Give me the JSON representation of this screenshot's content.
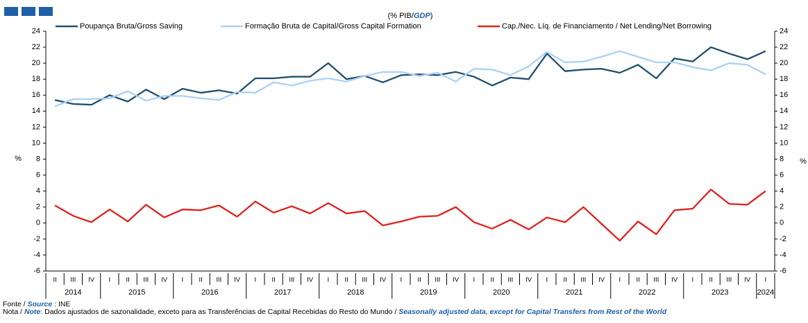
{
  "chart_data": {
    "type": "line",
    "title_parts": [
      "(% PIB/",
      "GDP",
      ")"
    ],
    "y_label": "%",
    "y2_label": "%",
    "categories": [
      "II",
      "III",
      "IV",
      "I",
      "II",
      "III",
      "IV",
      "I",
      "II",
      "III",
      "IV",
      "I",
      "II",
      "III",
      "IV",
      "I",
      "II",
      "III",
      "IV",
      "I",
      "II",
      "III",
      "IV",
      "I",
      "II",
      "III",
      "IV",
      "I",
      "II",
      "III",
      "IV",
      "I",
      "II",
      "III",
      "IV",
      "I",
      "II",
      "III",
      "IV",
      "I"
    ],
    "years": [
      "2014",
      "2015",
      "2016",
      "2017",
      "2018",
      "2019",
      "2020",
      "2021",
      "2022",
      "2023",
      "2024"
    ],
    "series": [
      {
        "name": "Poupança Bruta/Gross Saving",
        "color": "#1f4e6e",
        "values": [
          15.4,
          14.9,
          14.8,
          16.0,
          15.2,
          16.7,
          15.5,
          16.8,
          16.3,
          16.6,
          16.2,
          18.1,
          18.1,
          18.3,
          18.3,
          20.0,
          18.0,
          18.4,
          17.6,
          18.5,
          18.6,
          18.5,
          18.9,
          18.3,
          17.2,
          18.2,
          18.0,
          21.2,
          19.0,
          19.2,
          19.3,
          18.8,
          19.8,
          18.1,
          20.6,
          20.2,
          22.0,
          21.2,
          20.5,
          21.5
        ]
      },
      {
        "name": "Formação Bruta de Capital/Gross Capital Formation",
        "color": "#a9d1f5",
        "values": [
          14.6,
          15.5,
          15.5,
          15.6,
          16.5,
          15.3,
          15.9,
          15.9,
          15.6,
          15.4,
          16.4,
          16.3,
          17.6,
          17.2,
          17.8,
          18.1,
          17.7,
          18.4,
          18.9,
          18.9,
          18.4,
          18.8,
          17.7,
          19.3,
          19.2,
          18.5,
          19.6,
          21.4,
          20.1,
          20.2,
          20.8,
          21.5,
          20.8,
          20.1,
          20.1,
          19.5,
          19.1,
          20.0,
          19.8,
          18.6
        ]
      },
      {
        "name": "Cap./Nec. Líq. de Financiamento / Net Lending/Net Borrowing",
        "color": "#e0201b",
        "values": [
          2.2,
          0.9,
          0.1,
          1.7,
          0.2,
          2.3,
          0.7,
          1.7,
          1.6,
          2.2,
          0.8,
          2.7,
          1.3,
          2.1,
          1.2,
          2.5,
          1.2,
          1.5,
          -0.3,
          0.2,
          0.8,
          0.9,
          2.0,
          0.1,
          -0.7,
          0.4,
          -0.8,
          0.7,
          0.1,
          2.0,
          -0.1,
          -2.2,
          0.2,
          -1.4,
          1.6,
          1.8,
          4.2,
          2.4,
          2.3,
          4.0
        ]
      }
    ],
    "ylim": [
      -6,
      24
    ],
    "yticks": [
      -6,
      -4,
      -2,
      0,
      2,
      4,
      6,
      8,
      10,
      12,
      14,
      16,
      18,
      20,
      22,
      24
    ],
    "y2lim": [
      -6,
      24
    ],
    "y2ticks": [
      -6,
      -4,
      -2,
      0,
      2,
      4,
      6,
      8,
      10,
      12,
      14,
      16,
      18,
      20,
      22,
      24
    ],
    "source_label": "Fonte / ",
    "source_em": "Source",
    "source_text": ": INE",
    "note_label": "Nota / ",
    "note_em": "Note",
    "note_text": ": Dados ajustados de sazonalidade, exceto para as Transferências de Capital Recebidas do Resto do Mundo / ",
    "note_en": "Seasonally adjusted data, except for Capital Transfers from Rest of the World"
  }
}
